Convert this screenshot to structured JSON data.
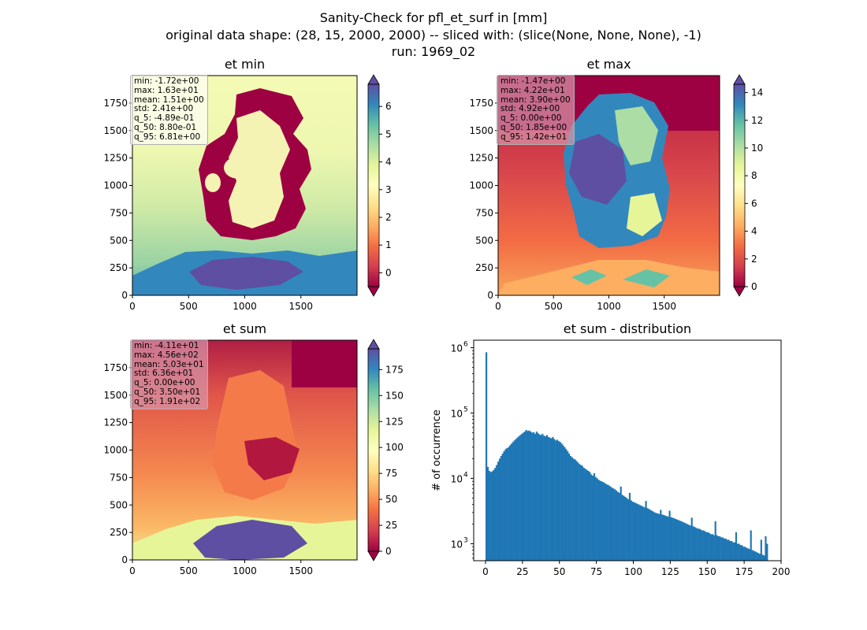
{
  "figure": {
    "title_lines": [
      "Sanity-Check for pfl_et_surf in [mm]",
      "original data shape: (28, 15, 2000, 2000) -- sliced with: (slice(None, None, None), -1)",
      "run: 1969_02"
    ]
  },
  "panels": {
    "et_min": {
      "title": "et min",
      "x_ticks": [
        "0",
        "500",
        "1000",
        "1500"
      ],
      "y_ticks": [
        "0",
        "250",
        "500",
        "750",
        "1000",
        "1250",
        "1500",
        "1750"
      ],
      "colorbar_ticks": [
        "0",
        "1",
        "2",
        "3",
        "4",
        "5",
        "6"
      ],
      "colorbar_range": [
        -0.5,
        6.8
      ],
      "stats": [
        "min: -1.72e+00",
        "max: 1.63e+01",
        "mean: 1.51e+00",
        "std: 2.41e+00",
        "q_5: -4.89e-01",
        "q_50: 8.80e-01",
        "q_95: 6.81e+00"
      ]
    },
    "et_max": {
      "title": "et max",
      "x_ticks": [
        "0",
        "500",
        "1000",
        "1500"
      ],
      "y_ticks": [
        "0",
        "250",
        "500",
        "750",
        "1000",
        "1250",
        "1500",
        "1750"
      ],
      "colorbar_ticks": [
        "0",
        "2",
        "4",
        "6",
        "8",
        "10",
        "12",
        "14"
      ],
      "colorbar_range": [
        0,
        14.6
      ],
      "stats": [
        "min: -1.47e+00",
        "max: 4.22e+01",
        "mean: 3.90e+00",
        "std: 4.92e+00",
        "q_5: 0.00e+00",
        "q_50: 1.85e+00",
        "q_95: 1.42e+01"
      ]
    },
    "et_sum": {
      "title": "et sum",
      "x_ticks": [
        "0",
        "500",
        "1000",
        "1500"
      ],
      "y_ticks": [
        "0",
        "250",
        "500",
        "750",
        "1000",
        "1250",
        "1500",
        "1750"
      ],
      "colorbar_ticks": [
        "0",
        "25",
        "50",
        "75",
        "100",
        "125",
        "150",
        "175"
      ],
      "colorbar_range": [
        0,
        195
      ],
      "stats": [
        "min: -4.11e+01",
        "max: 4.56e+02",
        "mean: 5.03e+01",
        "std: 6.36e+01",
        "q_5: 0.00e+00",
        "q_50: 3.50e+01",
        "q_95: 1.91e+02"
      ]
    }
  },
  "chart_data": {
    "type": "bar",
    "title": "et sum - distribution",
    "xlabel": "",
    "ylabel": "# of occurrence",
    "x_ticks": [
      "0",
      "25",
      "50",
      "75",
      "100",
      "125",
      "150",
      "175",
      "200"
    ],
    "y_ticks": [
      "10",
      "10",
      "10"
    ],
    "y_tick_exponents": [
      "3",
      "4",
      "5",
      "6"
    ],
    "xlim": [
      -8,
      200
    ],
    "ylim": [
      550,
      1300000
    ],
    "yscale": "log",
    "bar_color": "#1f77b4",
    "bin_width": 1,
    "x": [
      0,
      1,
      2,
      3,
      4,
      5,
      6,
      7,
      8,
      9,
      10,
      11,
      12,
      13,
      14,
      15,
      16,
      17,
      18,
      19,
      20,
      21,
      22,
      23,
      24,
      25,
      26,
      27,
      28,
      29,
      30,
      31,
      32,
      33,
      34,
      35,
      36,
      37,
      38,
      39,
      40,
      41,
      42,
      43,
      44,
      45,
      46,
      47,
      48,
      49,
      50,
      51,
      52,
      53,
      54,
      55,
      56,
      57,
      58,
      59,
      60,
      61,
      62,
      63,
      64,
      65,
      66,
      67,
      68,
      69,
      70,
      71,
      72,
      73,
      74,
      75,
      76,
      77,
      78,
      79,
      80,
      81,
      82,
      83,
      84,
      85,
      86,
      87,
      88,
      89,
      90,
      91,
      92,
      93,
      94,
      95,
      96,
      97,
      98,
      99,
      100,
      101,
      102,
      103,
      104,
      105,
      106,
      107,
      108,
      109,
      110,
      111,
      112,
      113,
      114,
      115,
      116,
      117,
      118,
      119,
      120,
      121,
      122,
      123,
      124,
      125,
      126,
      127,
      128,
      129,
      130,
      131,
      132,
      133,
      134,
      135,
      136,
      137,
      138,
      139,
      140,
      141,
      142,
      143,
      144,
      145,
      146,
      147,
      148,
      149,
      150,
      151,
      152,
      153,
      154,
      155,
      156,
      157,
      158,
      159,
      160,
      161,
      162,
      163,
      164,
      165,
      166,
      167,
      168,
      169,
      170,
      171,
      172,
      173,
      174,
      175,
      176,
      177,
      178,
      179,
      180,
      181,
      182,
      183,
      184,
      185,
      186,
      187,
      188,
      189,
      190
    ],
    "values": [
      850000,
      15000,
      13000,
      12500,
      12800,
      13500,
      14500,
      16000,
      18000,
      20000,
      22000,
      24000,
      26000,
      28000,
      29000,
      30000,
      32000,
      34000,
      36000,
      38000,
      40000,
      42000,
      44000,
      46000,
      48000,
      50000,
      52000,
      55000,
      53000,
      54000,
      52000,
      50000,
      51000,
      48000,
      52000,
      49000,
      47000,
      46000,
      48000,
      45000,
      44000,
      46000,
      43000,
      42000,
      41000,
      43000,
      40000,
      38000,
      39000,
      37000,
      36000,
      34000,
      32000,
      30000,
      28000,
      26000,
      24000,
      22000,
      21000,
      20000,
      19500,
      18500,
      17500,
      16500,
      16000,
      15500,
      14500,
      14000,
      13500,
      13000,
      12500,
      11500,
      11000,
      12000,
      10500,
      10000,
      9500,
      9200,
      9000,
      8800,
      8500,
      8200,
      8000,
      7800,
      7500,
      7200,
      7000,
      6800,
      6500,
      6200,
      6000,
      7500,
      5600,
      5400,
      5200,
      5000,
      4800,
      6000,
      4600,
      4400,
      4300,
      4200,
      4100,
      4000,
      3900,
      3800,
      3700,
      3600,
      4500,
      3500,
      3400,
      3300,
      3200,
      3100,
      3000,
      2950,
      2900,
      2850,
      3300,
      2800,
      2750,
      2700,
      2650,
      2600,
      3200,
      2550,
      2500,
      2450,
      2400,
      2350,
      2300,
      2250,
      2200,
      2150,
      2100,
      2050,
      2000,
      1950,
      1900,
      2500,
      1850,
      1800,
      1750,
      1700,
      1700,
      1650,
      1600,
      1600,
      1550,
      1500,
      1500,
      1450,
      1400,
      1400,
      1350,
      2200,
      1350,
      1300,
      1300,
      1250,
      1250,
      1200,
      1200,
      1150,
      1150,
      1100,
      1100,
      1050,
      1050,
      1500,
      1000,
      1000,
      950,
      950,
      900,
      900,
      870,
      850,
      830,
      1600,
      800,
      780,
      760,
      740,
      720,
      700,
      1150,
      680,
      660,
      1300,
      1000
    ]
  }
}
